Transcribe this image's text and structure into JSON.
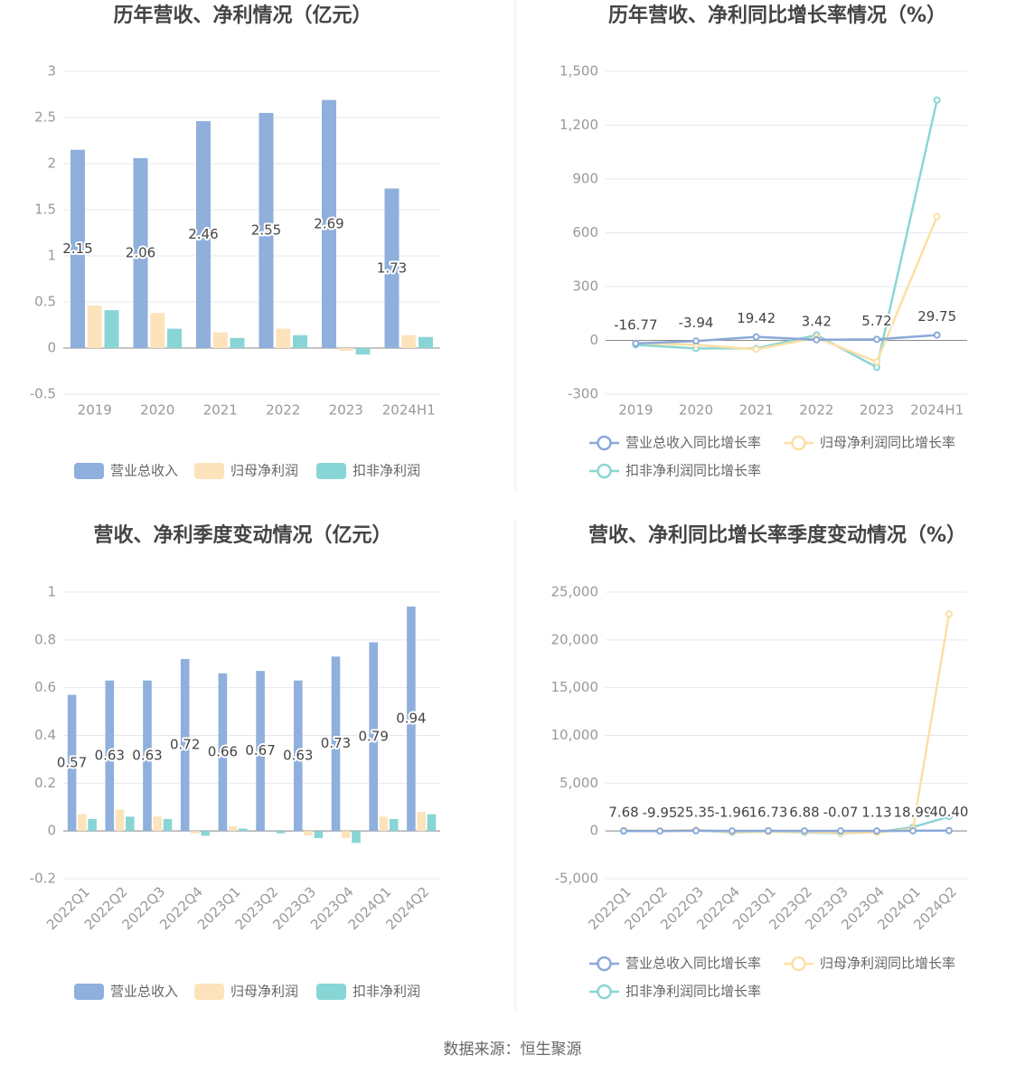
{
  "chart_data": [
    {
      "type": "bar",
      "title": "历年营收、净利情况（亿元）",
      "categories": [
        "2019",
        "2020",
        "2021",
        "2022",
        "2023",
        "2024H1"
      ],
      "series": [
        {
          "name": "营业总收入",
          "color": "#8fafdc",
          "values": [
            2.15,
            2.06,
            2.46,
            2.55,
            2.69,
            1.73
          ],
          "data_labels": true
        },
        {
          "name": "归母净利润",
          "color": "#fde3bb",
          "values": [
            0.46,
            0.38,
            0.17,
            0.21,
            -0.03,
            0.14
          ]
        },
        {
          "name": "扣非净利润",
          "color": "#88d5d5",
          "values": [
            0.41,
            0.21,
            0.11,
            0.14,
            -0.07,
            0.12
          ]
        }
      ],
      "ylim": [
        -0.5,
        3
      ],
      "yticks": [
        -0.5,
        0,
        0.5,
        1,
        1.5,
        2,
        2.5,
        3
      ],
      "grid": true,
      "legend": "bottom"
    },
    {
      "type": "line",
      "title": "历年营收、净利同比增长率情况（%）",
      "categories": [
        "2019",
        "2020",
        "2021",
        "2022",
        "2023",
        "2024H1"
      ],
      "series": [
        {
          "name": "营业总收入同比增长率",
          "color": "#8aa9d8",
          "values": [
            -16.77,
            -3.94,
            19.42,
            3.42,
            5.72,
            29.75
          ],
          "data_labels": true
        },
        {
          "name": "归母净利润同比增长率",
          "color": "#fddfa6",
          "values": [
            -15,
            -25,
            -50,
            15,
            -120,
            690
          ]
        },
        {
          "name": "扣非净利润同比增长率",
          "color": "#8ad6d4",
          "values": [
            -25,
            -45,
            -45,
            30,
            -150,
            1340
          ]
        }
      ],
      "ylim": [
        -300,
        1500
      ],
      "yticks": [
        -300,
        0,
        300,
        600,
        900,
        {
          "value": 1200,
          "label": "1,200"
        },
        {
          "value": 1500,
          "label": "1,500"
        }
      ],
      "grid": true,
      "legend": "bottom"
    },
    {
      "type": "bar",
      "title": "营收、净利季度变动情况（亿元）",
      "categories": [
        "2022Q1",
        "2022Q2",
        "2022Q3",
        "2022Q4",
        "2023Q1",
        "2023Q2",
        "2023Q3",
        "2023Q4",
        "2024Q1",
        "2024Q2"
      ],
      "series": [
        {
          "name": "营业总收入",
          "color": "#8fafdc",
          "values": [
            0.57,
            0.63,
            0.63,
            0.72,
            0.66,
            0.67,
            0.63,
            0.73,
            0.79,
            0.94
          ],
          "data_labels": true
        },
        {
          "name": "归母净利润",
          "color": "#fde3bb",
          "values": [
            0.07,
            0.09,
            0.06,
            -0.01,
            0.02,
            0.0,
            -0.02,
            -0.03,
            0.06,
            0.08
          ]
        },
        {
          "name": "扣非净利润",
          "color": "#88d5d5",
          "values": [
            0.05,
            0.06,
            0.05,
            -0.02,
            0.01,
            -0.01,
            -0.03,
            -0.05,
            0.05,
            0.07
          ]
        }
      ],
      "ylim": [
        -0.2,
        1
      ],
      "yticks": [
        -0.2,
        0,
        0.2,
        0.4,
        0.6,
        0.8,
        1
      ],
      "grid": true,
      "legend": "bottom",
      "xtick_rotation": 45
    },
    {
      "type": "line",
      "title": "营收、净利同比增长率季度变动情况（%）",
      "categories": [
        "2022Q1",
        "2022Q2",
        "2022Q3",
        "2022Q4",
        "2023Q1",
        "2023Q2",
        "2023Q3",
        "2023Q4",
        "2024Q1",
        "2024Q2"
      ],
      "series": [
        {
          "name": "营业总收入同比增长率",
          "color": "#8aa9d8",
          "values": [
            7.68,
            -9.95,
            25.35,
            -1.96,
            16.73,
            6.88,
            -0.07,
            1.13,
            18.99,
            40.4
          ],
          "value_labels": [
            "7.68",
            "-9.95",
            "25.35",
            "-1.96",
            "16.73",
            "6.88",
            "-0.07",
            "1.13",
            "18.99",
            "40.40"
          ],
          "data_labels": true
        },
        {
          "name": "归母净利润同比增长率",
          "color": "#fddfa6",
          "values": [
            50,
            30,
            100,
            -100,
            -80,
            -100,
            -200,
            -150,
            200,
            22700
          ]
        },
        {
          "name": "扣非净利润同比增长率",
          "color": "#8ad6d4",
          "values": [
            -20,
            10,
            80,
            -150,
            -70,
            -150,
            -250,
            -120,
            400,
            1500
          ]
        }
      ],
      "ylim": [
        -5000,
        25000
      ],
      "yticks": [
        {
          "value": -5000,
          "label": "-5,000"
        },
        0,
        {
          "value": 5000,
          "label": "5,000"
        },
        {
          "value": 10000,
          "label": "10,000"
        },
        {
          "value": 15000,
          "label": "15,000"
        },
        {
          "value": 20000,
          "label": "20,000"
        },
        {
          "value": 25000,
          "label": "25,000"
        }
      ],
      "grid": true,
      "legend": "bottom",
      "xtick_rotation": 45
    }
  ],
  "source": "数据来源：恒生聚源"
}
